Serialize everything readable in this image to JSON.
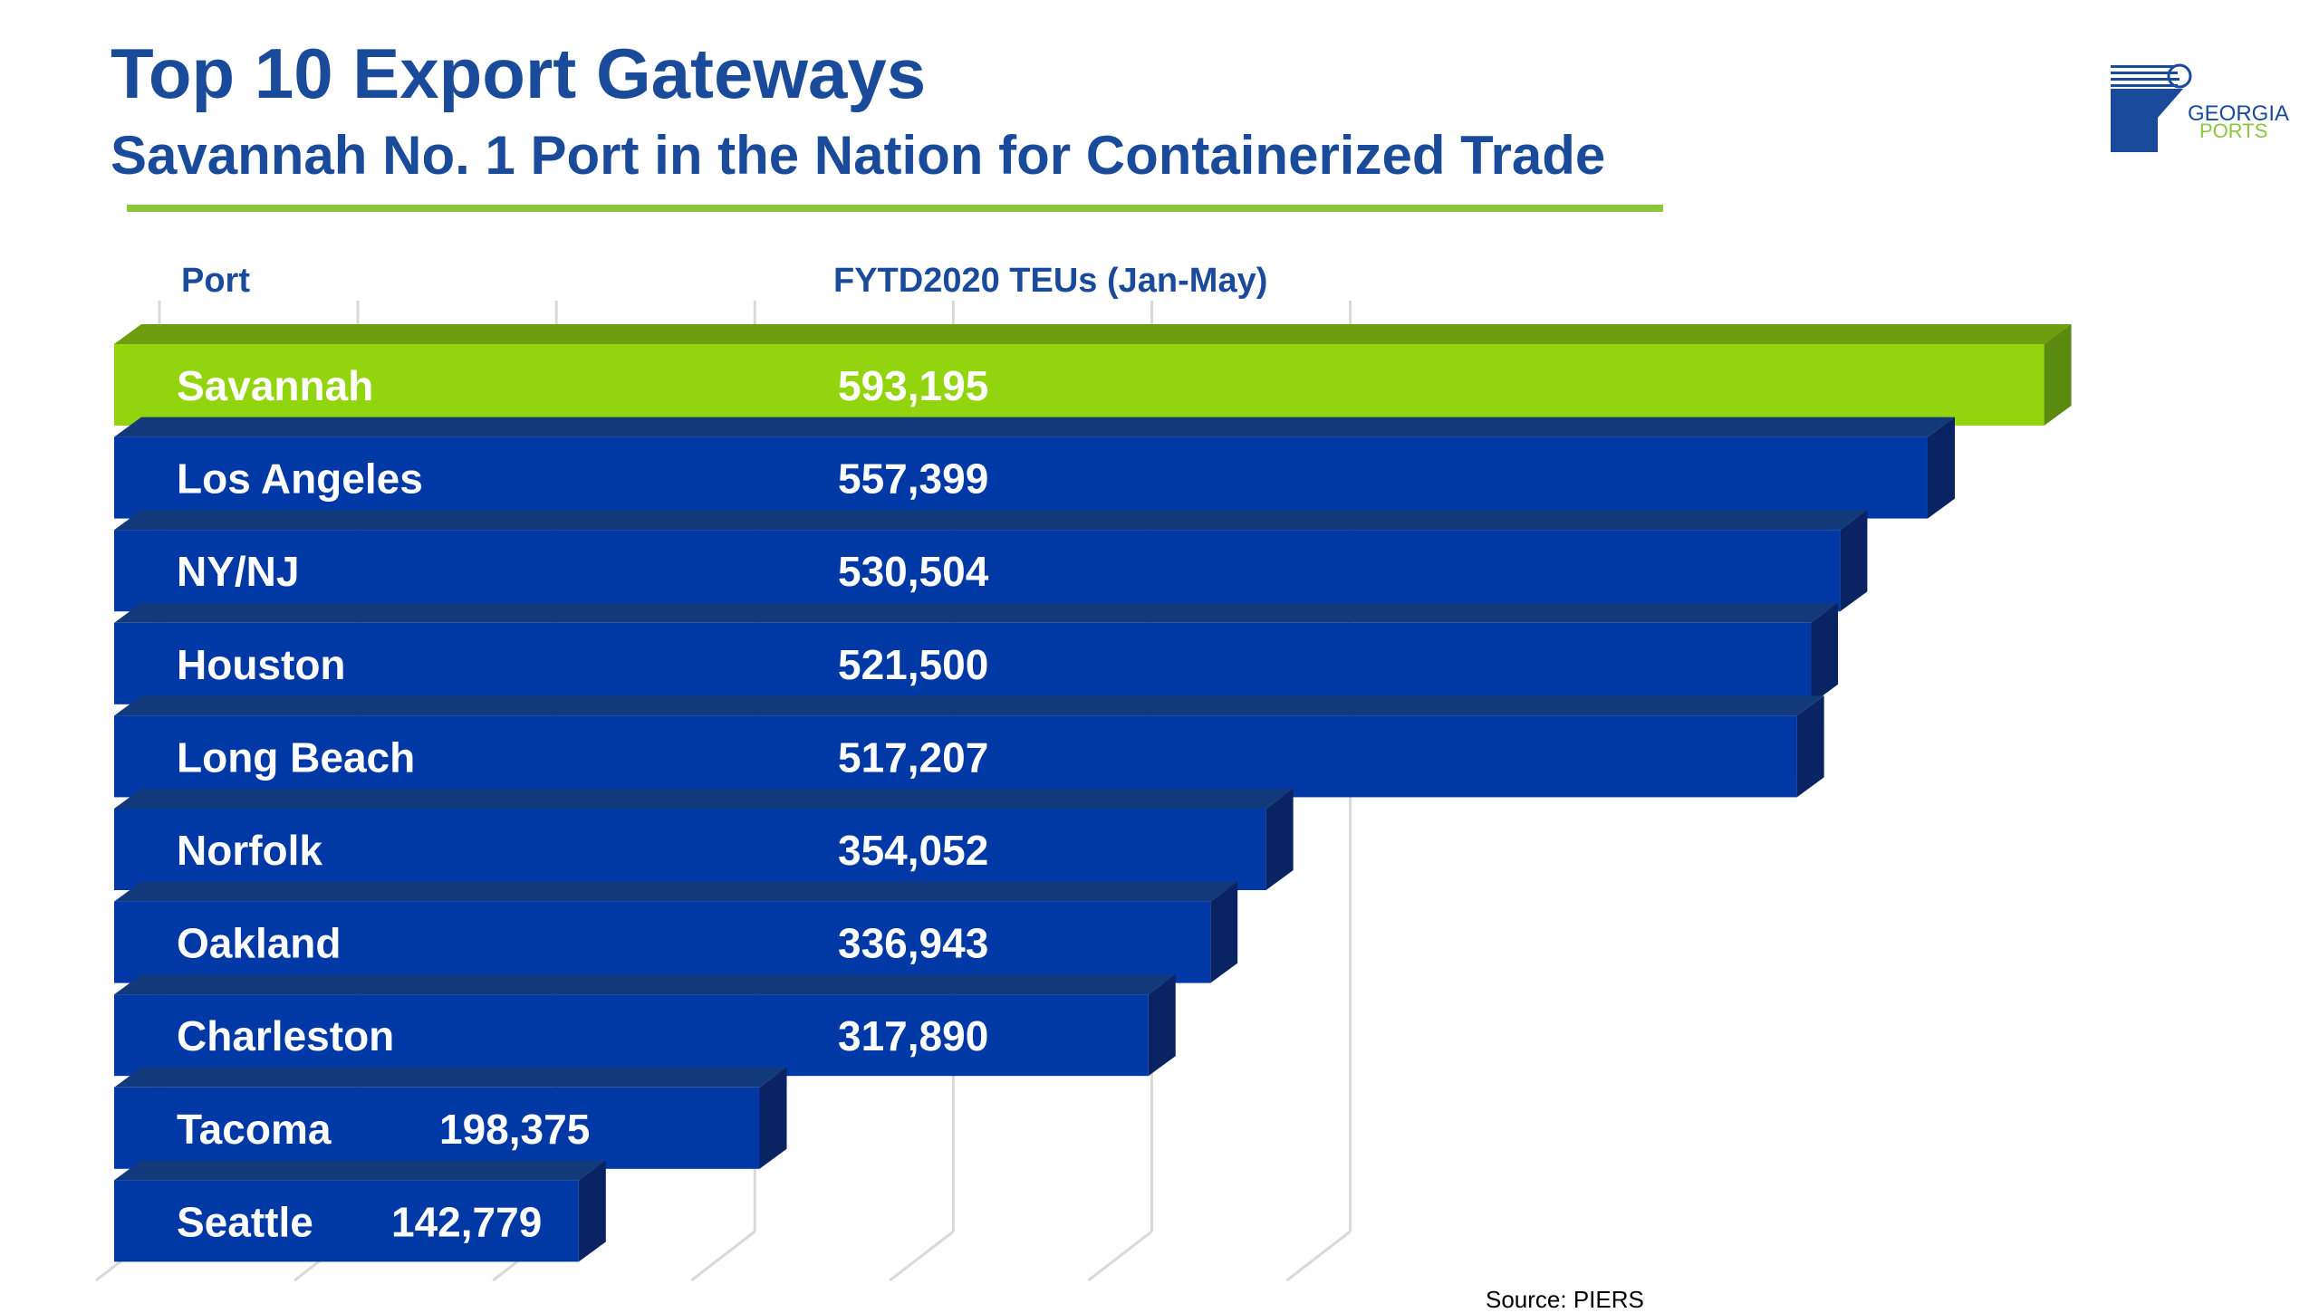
{
  "title": "Top 10 Export Gateways",
  "subtitle": "Savannah No. 1 Port in the Nation for Containerized Trade",
  "logo": {
    "line1": "GEORGIA",
    "line2": "PORTS"
  },
  "source": "Source: PIERS",
  "colors": {
    "title": "#1a4a9a",
    "accent": "#8cc63f",
    "highlight_front": "#92d50e",
    "highlight_top": "#6e9e0e",
    "highlight_side": "#5a8a10",
    "bar_front": "#0039a6",
    "bar_top": "#123a7a",
    "bar_side": "#0a2463",
    "label": "#ffffff",
    "header": "#1a4a9a",
    "grid": "#d9d9d9"
  },
  "chart_data": {
    "type": "bar",
    "orientation": "horizontal",
    "column_headers": [
      "Port",
      "FYTD2020 TEUs (Jan-May)"
    ],
    "categories": [
      "Savannah",
      "Los Angeles",
      "NY/NJ",
      "Houston",
      "Long Beach",
      "Norfolk",
      "Oakland",
      "Charleston",
      "Tacoma",
      "Seattle"
    ],
    "values": [
      593195,
      557399,
      530504,
      521500,
      517207,
      354052,
      336943,
      317890,
      198375,
      142779
    ],
    "value_labels": [
      "593,195",
      "557,399",
      "530,504",
      "521,500",
      "517,207",
      "354,052",
      "336,943",
      "317,890",
      "198,375",
      "142,779"
    ],
    "highlight_index": 0,
    "xlim": [
      0,
      600000
    ],
    "grid": true,
    "legend": "none"
  }
}
